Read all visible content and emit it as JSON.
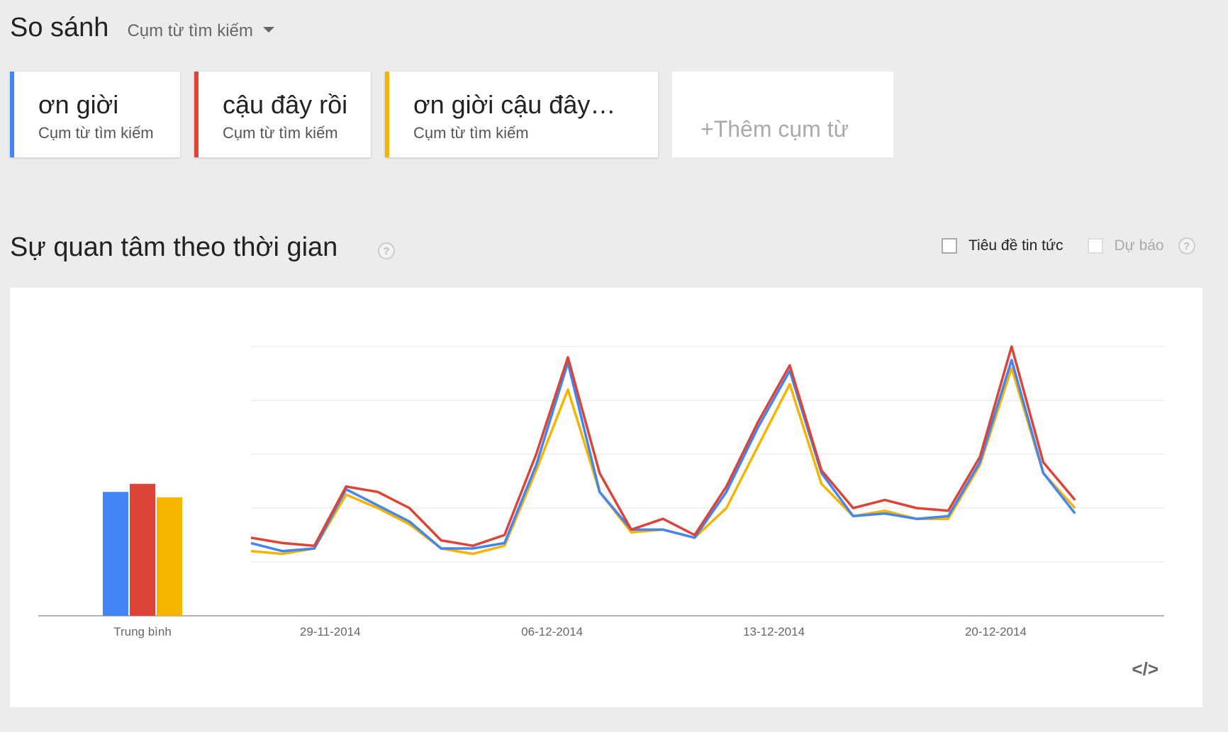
{
  "header": {
    "title": "So sánh",
    "dropdown_label": "Cụm từ tìm kiếm"
  },
  "terms": [
    {
      "name": "ơn giời",
      "sub": "Cụm từ tìm kiếm",
      "color": "#4285f4"
    },
    {
      "name": "cậu đây rồi",
      "sub": "Cụm từ tìm kiếm",
      "color": "#db4437"
    },
    {
      "name": "ơn giời cậu đây…",
      "sub": "Cụm từ tìm kiếm",
      "color": "#f4b400"
    }
  ],
  "add_term_label": "+Thêm cụm từ",
  "section": {
    "title": "Sự quan tâm theo thời gian",
    "help": "?",
    "news_label": "Tiêu đề tin tức",
    "forecast_label": "Dự báo"
  },
  "chart_data": {
    "type": "line",
    "average_label": "Trung bình",
    "average_values": [
      46,
      49,
      44
    ],
    "x_tick_labels": [
      "29-11-2014",
      "06-12-2014",
      "13-12-2014",
      "20-12-2014"
    ],
    "x_tick_indices": [
      2.5,
      9.5,
      16.5,
      23.5
    ],
    "ylim": [
      0,
      100
    ],
    "series": [
      {
        "name": "ơn giời",
        "color": "#4285f4",
        "values": [
          27,
          24,
          25,
          47,
          41,
          35,
          25,
          25,
          27,
          56,
          94,
          46,
          32,
          32,
          29,
          46,
          70,
          91,
          53,
          37,
          38,
          36,
          37,
          57,
          95,
          53,
          38
        ]
      },
      {
        "name": "cậu đây rồi",
        "color": "#db4437",
        "values": [
          29,
          27,
          26,
          48,
          46,
          40,
          28,
          26,
          30,
          60,
          96,
          53,
          32,
          36,
          30,
          48,
          72,
          93,
          54,
          40,
          43,
          40,
          39,
          59,
          100,
          57,
          43
        ]
      },
      {
        "name": "ơn giời cậu đây…",
        "color": "#f4b400",
        "values": [
          24,
          23,
          25,
          45,
          40,
          34,
          25,
          23,
          26,
          54,
          84,
          46,
          31,
          32,
          29,
          40,
          63,
          86,
          49,
          37,
          39,
          36,
          36,
          56,
          92,
          53,
          40
        ]
      }
    ]
  },
  "embed_icon": "</>"
}
